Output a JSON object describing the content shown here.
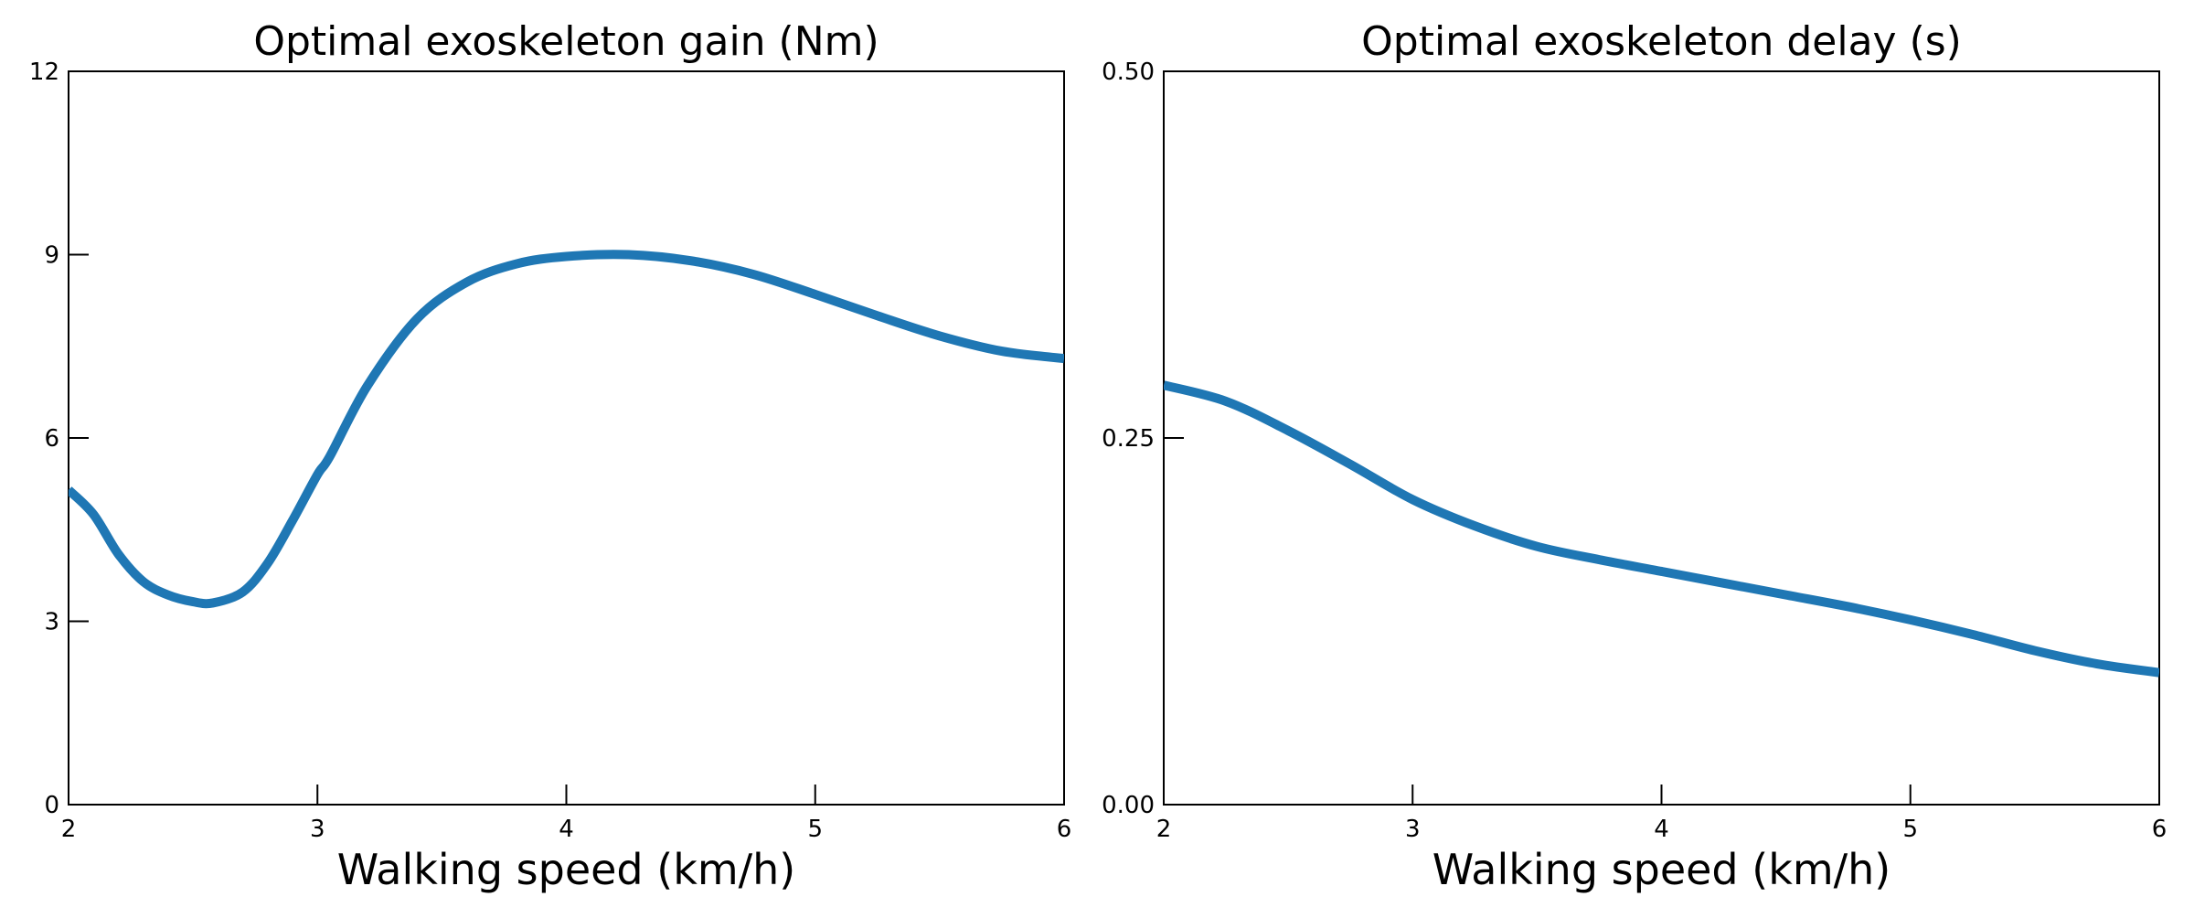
{
  "chart_data": [
    {
      "type": "line",
      "title": "Optimal exoskeleton gain (Nm)",
      "xlabel": "Walking speed (km/h)",
      "ylabel": "",
      "xlim": [
        2,
        6
      ],
      "ylim": [
        0,
        12
      ],
      "xticks": [
        "2",
        "3",
        "4",
        "5",
        "6"
      ],
      "yticks": [
        "0",
        "3",
        "6",
        "9",
        "12"
      ],
      "grid": false,
      "series": [
        {
          "color": "#1f77b4",
          "x": [
            2.0,
            2.1,
            2.2,
            2.3,
            2.4,
            2.5,
            2.58,
            2.7,
            2.8,
            2.9,
            3.0,
            3.05,
            3.2,
            3.4,
            3.6,
            3.8,
            4.0,
            4.25,
            4.5,
            4.75,
            5.0,
            5.25,
            5.5,
            5.75,
            6.0
          ],
          "y": [
            5.15,
            4.75,
            4.1,
            3.65,
            3.43,
            3.32,
            3.3,
            3.48,
            3.95,
            4.65,
            5.4,
            5.7,
            6.85,
            7.95,
            8.55,
            8.85,
            8.97,
            9.0,
            8.9,
            8.68,
            8.35,
            8.0,
            7.67,
            7.42,
            7.3
          ]
        }
      ]
    },
    {
      "type": "line",
      "title": "Optimal exoskeleton delay (s)",
      "xlabel": "Walking speed (km/h)",
      "ylabel": "",
      "xlim": [
        2,
        6
      ],
      "ylim": [
        0,
        0.5
      ],
      "xticks": [
        "2",
        "3",
        "4",
        "5",
        "6"
      ],
      "yticks": [
        "0.00",
        "0.25",
        "0.50"
      ],
      "grid": false,
      "series": [
        {
          "color": "#1f77b4",
          "x": [
            2.0,
            2.25,
            2.5,
            2.75,
            3.0,
            3.25,
            3.5,
            3.75,
            4.0,
            4.25,
            4.5,
            4.75,
            5.0,
            5.25,
            5.5,
            5.75,
            6.0
          ],
          "y": [
            0.286,
            0.275,
            0.255,
            0.232,
            0.208,
            0.19,
            0.176,
            0.167,
            0.159,
            0.151,
            0.143,
            0.135,
            0.126,
            0.116,
            0.105,
            0.096,
            0.09
          ]
        }
      ]
    }
  ]
}
